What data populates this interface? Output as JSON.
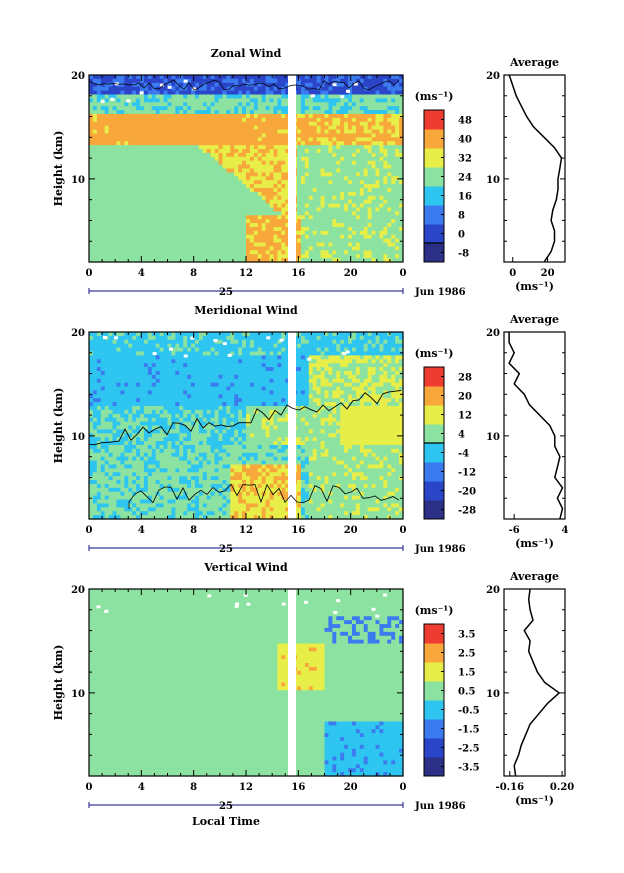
{
  "chart_data": [
    {
      "type": "heatmap",
      "title": "Zonal Wind",
      "ylabel": "Height (km)",
      "ylim": [
        2,
        20
      ],
      "yticks": [
        "10",
        "20"
      ],
      "xticks": [
        "0",
        "4",
        "8",
        "12",
        "16",
        "20",
        "0"
      ],
      "date_label": "25",
      "month_label": "Jun 1986",
      "colorbar": {
        "unit": "(ms⁻¹)",
        "levels": [
          "-8",
          "0",
          "8",
          "16",
          "24",
          "32",
          "40",
          "48"
        ]
      },
      "average_profile": {
        "title": "Average",
        "xlabel": "(ms⁻¹)",
        "xticks": [
          "0",
          "20"
        ],
        "xlim": [
          -5,
          30
        ],
        "height_km": [
          2,
          3,
          4,
          5,
          6,
          7,
          8,
          9,
          10,
          11,
          12,
          13,
          14,
          15,
          16,
          17,
          18,
          19,
          20
        ],
        "value": [
          18,
          22,
          24,
          24,
          22,
          23,
          25,
          26,
          26,
          27,
          28,
          24,
          18,
          12,
          8,
          5,
          2,
          0,
          -2
        ]
      }
    },
    {
      "type": "heatmap",
      "title": "Meridional Wind",
      "ylabel": "Height (km)",
      "ylim": [
        2,
        20
      ],
      "yticks": [
        "10",
        "20"
      ],
      "xticks": [
        "0",
        "4",
        "8",
        "12",
        "16",
        "20",
        "0"
      ],
      "date_label": "25",
      "month_label": "Jun 1986",
      "colorbar": {
        "unit": "(ms⁻¹)",
        "levels": [
          "-28",
          "-20",
          "-12",
          "-4",
          "4",
          "12",
          "20",
          "28"
        ]
      },
      "average_profile": {
        "title": "Average",
        "xlabel": "(ms⁻¹)",
        "xticks": [
          "-6",
          "4"
        ],
        "xlim": [
          -8,
          4
        ],
        "height_km": [
          2,
          3,
          4,
          5,
          6,
          7,
          8,
          9,
          10,
          11,
          12,
          13,
          14,
          15,
          16,
          17,
          18,
          19,
          20
        ],
        "value": [
          3,
          3.5,
          2.5,
          3.5,
          2,
          2.5,
          3,
          2,
          2,
          1,
          -1,
          -3,
          -4,
          -6,
          -5,
          -7,
          -6,
          -7,
          -7
        ]
      }
    },
    {
      "type": "heatmap",
      "title": "Vertical Wind",
      "ylabel": "Height (km)",
      "ylim": [
        2,
        20
      ],
      "yticks": [
        "10",
        "20"
      ],
      "xticks": [
        "0",
        "4",
        "8",
        "12",
        "16",
        "20",
        "0"
      ],
      "date_label": "25",
      "month_label": "Jun 1986",
      "xlabel": "Local Time",
      "colorbar": {
        "unit": "(ms⁻¹)",
        "levels": [
          "-3.5",
          "-2.5",
          "-1.5",
          "-0.5",
          "0.5",
          "1.5",
          "2.5",
          "3.5"
        ]
      },
      "average_profile": {
        "title": "Average",
        "xlabel": "(ms⁻¹)",
        "xticks": [
          "-0.16",
          "0.20"
        ],
        "xlim": [
          -0.2,
          0.22
        ],
        "height_km": [
          2,
          3,
          4,
          5,
          6,
          7,
          8,
          9,
          10,
          11,
          12,
          13,
          14,
          15,
          16,
          17,
          18,
          19,
          20
        ],
        "value": [
          -0.12,
          -0.13,
          -0.1,
          -0.08,
          -0.05,
          -0.02,
          0.04,
          0.1,
          0.18,
          0.08,
          0.03,
          0.0,
          -0.03,
          -0.02,
          -0.06,
          0.0,
          -0.02,
          -0.03,
          -0.02
        ]
      }
    }
  ],
  "colors": {
    "scale": [
      "#2b2f85",
      "#2b45c9",
      "#3b7bef",
      "#2ec5f0",
      "#8ce2a0",
      "#e8ee48",
      "#f8a83a",
      "#ef3c30"
    ]
  }
}
